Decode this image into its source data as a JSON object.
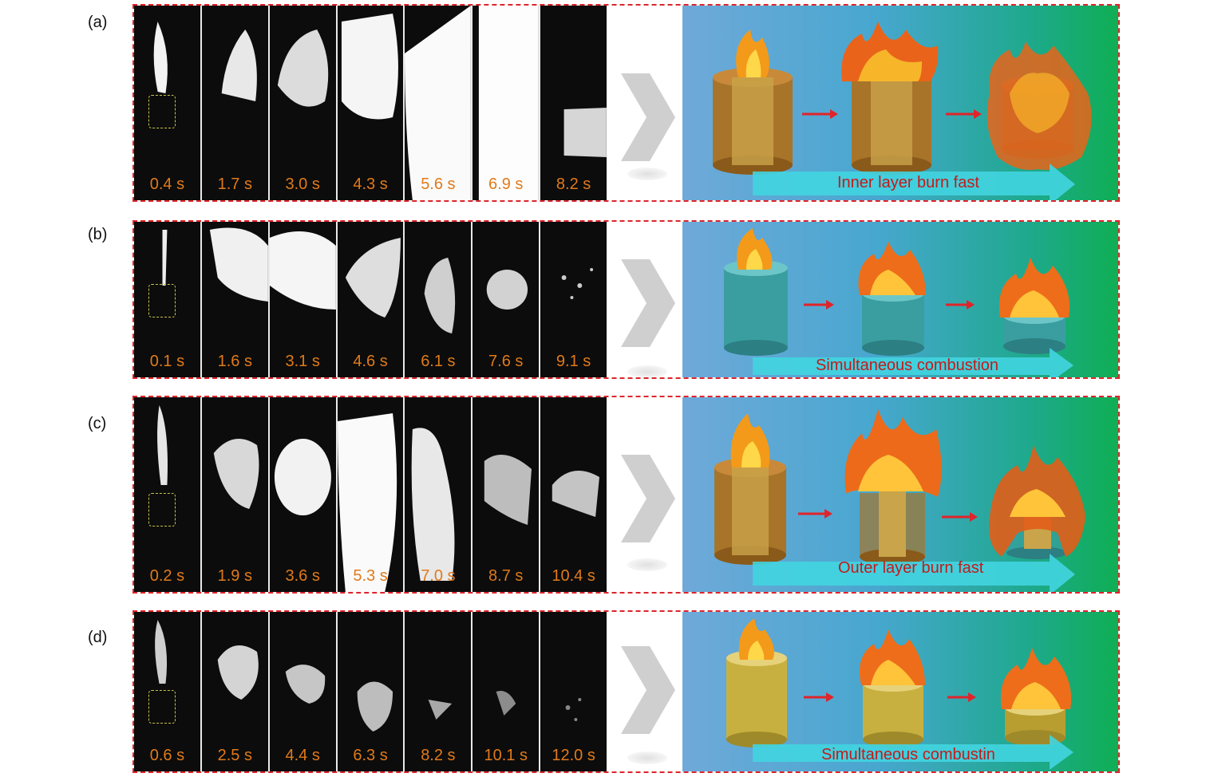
{
  "panels": [
    {
      "label": "(a)",
      "times": [
        "0.4 s",
        "1.7 s",
        "3.0 s",
        "4.3 s",
        "5.6 s",
        "6.9 s",
        "8.2 s"
      ],
      "caption": "Inner layer burn fast"
    },
    {
      "label": "(b)",
      "times": [
        "0.1 s",
        "1.6 s",
        "3.1 s",
        "4.6 s",
        "6.1 s",
        "7.6 s",
        "9.1 s"
      ],
      "caption": "Simultaneous combustion"
    },
    {
      "label": "(c)",
      "times": [
        "0.2 s",
        "1.9 s",
        "3.6 s",
        "5.3 s",
        "7.0 s",
        "8.7 s",
        "10.4 s"
      ],
      "caption": "Outer layer burn fast"
    },
    {
      "label": "(d)",
      "times": [
        "0.6 s",
        "2.5 s",
        "4.4 s",
        "6.3 s",
        "8.2 s",
        "10.1 s",
        "12.0 s"
      ],
      "caption": "Simultaneous combustin"
    }
  ],
  "colors": {
    "frame_border": "#e0242a",
    "time_text": "#e07a1a",
    "caption_text": "#c41a1a",
    "arrow": "#e0242a",
    "bronze_cylinder": "#b07a2a",
    "teal_cylinder": "#3a9ea0",
    "gold_cylinder": "#c8b040"
  }
}
